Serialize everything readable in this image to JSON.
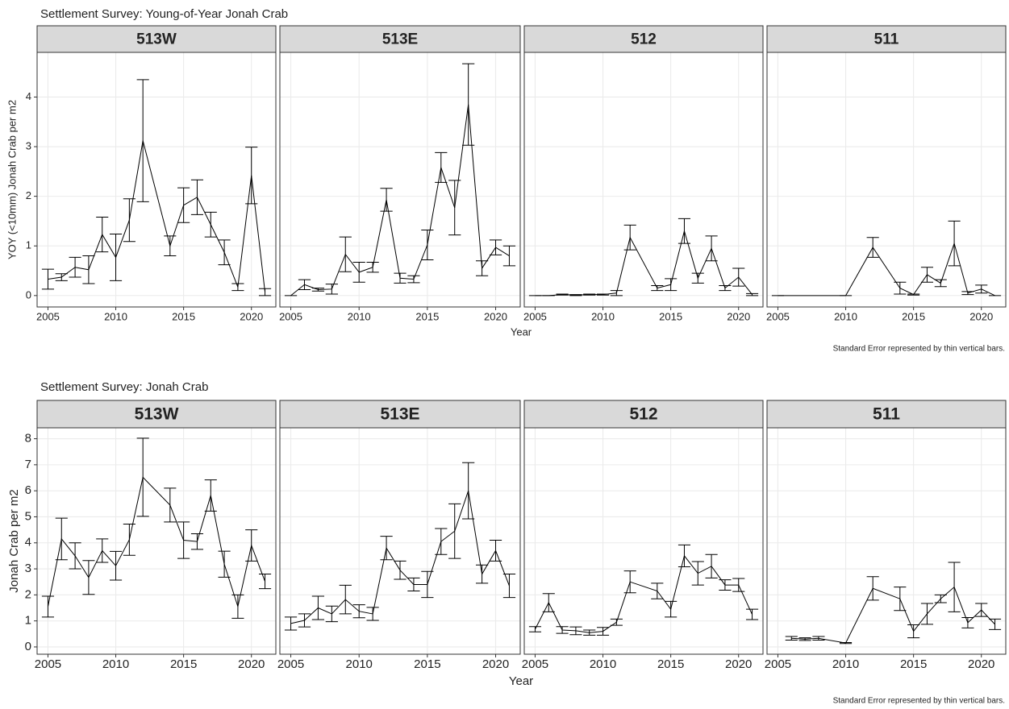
{
  "chart_data": [
    {
      "type": "line",
      "title": "Settlement Survey: Young-of-Year Jonah Crab",
      "ylabel": "YOY (<10mm) Jonah Crab per m2",
      "xlabel": "Year",
      "caption": "Standard Error represented by thin vertical bars.",
      "color": "#000000",
      "grid": true,
      "xlim": [
        2004.2,
        2021.8
      ],
      "xticks": [
        2005,
        2010,
        2015,
        2020
      ],
      "ylim": [
        -0.23,
        4.9
      ],
      "yticks": [
        0,
        1,
        2,
        3,
        4
      ],
      "panels": [
        {
          "name": "513W",
          "x": [
            2005,
            2006,
            2007,
            2008,
            2009,
            2010,
            2011,
            2012,
            2014,
            2015,
            2016,
            2017,
            2018,
            2019,
            2020,
            2021
          ],
          "values": [
            0.33,
            0.37,
            0.57,
            0.52,
            1.23,
            0.77,
            1.52,
            3.12,
            1.0,
            1.82,
            1.98,
            1.43,
            0.87,
            0.17,
            2.42,
            0.07
          ],
          "errors": [
            0.2,
            0.07,
            0.2,
            0.28,
            0.35,
            0.47,
            0.43,
            1.23,
            0.2,
            0.35,
            0.35,
            0.25,
            0.25,
            0.07,
            0.57,
            0.07
          ]
        },
        {
          "name": "513E",
          "x": [
            2005,
            2006,
            2007,
            2008,
            2009,
            2010,
            2011,
            2012,
            2013,
            2014,
            2015,
            2016,
            2017,
            2018,
            2019,
            2020,
            2021
          ],
          "values": [
            0,
            0.22,
            0.12,
            0.13,
            0.83,
            0.47,
            0.57,
            1.93,
            0.35,
            0.33,
            1.02,
            2.58,
            1.77,
            3.85,
            0.55,
            0.97,
            0.8
          ],
          "errors": [
            0,
            0.1,
            0.03,
            0.1,
            0.35,
            0.2,
            0.1,
            0.23,
            0.1,
            0.07,
            0.3,
            0.3,
            0.55,
            0.82,
            0.15,
            0.15,
            0.2
          ]
        },
        {
          "name": "512",
          "x": [
            2005,
            2006,
            2007,
            2008,
            2009,
            2010,
            2011,
            2012,
            2014,
            2015,
            2016,
            2017,
            2018,
            2019,
            2020,
            2021
          ],
          "values": [
            0,
            0,
            0.02,
            0.01,
            0.02,
            0.02,
            0.05,
            1.17,
            0.15,
            0.22,
            1.3,
            0.35,
            0.95,
            0.15,
            0.37,
            0.02
          ],
          "errors": [
            0,
            0,
            0.01,
            0.01,
            0.01,
            0.01,
            0.05,
            0.25,
            0.05,
            0.12,
            0.25,
            0.1,
            0.25,
            0.05,
            0.18,
            0.02
          ]
        },
        {
          "name": "511",
          "x": [
            2005,
            2010,
            2012,
            2014,
            2015,
            2016,
            2017,
            2018,
            2019,
            2020,
            2021
          ],
          "values": [
            0,
            0,
            0.97,
            0.15,
            0.02,
            0.42,
            0.25,
            1.05,
            0.05,
            0.13,
            0
          ],
          "errors": [
            0,
            0,
            0.2,
            0.12,
            0.01,
            0.15,
            0.07,
            0.45,
            0.03,
            0.08,
            0
          ]
        }
      ]
    },
    {
      "type": "line",
      "title": "Settlement Survey: Jonah Crab",
      "ylabel": "Jonah Crab per m2",
      "xlabel": "Year",
      "caption": "Standard Error represented by thin vertical bars.",
      "color": "#000000",
      "grid": true,
      "xlim": [
        2004.2,
        2021.8
      ],
      "xticks": [
        2005,
        2010,
        2015,
        2020
      ],
      "ylim": [
        -0.28,
        8.42
      ],
      "yticks": [
        0,
        1,
        2,
        3,
        4,
        5,
        6,
        7,
        8
      ],
      "panels": [
        {
          "name": "513W",
          "x": [
            2005,
            2006,
            2007,
            2008,
            2009,
            2010,
            2011,
            2012,
            2014,
            2015,
            2016,
            2017,
            2018,
            2019,
            2020,
            2021
          ],
          "values": [
            1.55,
            4.15,
            3.5,
            2.67,
            3.7,
            3.12,
            4.12,
            6.52,
            5.45,
            4.1,
            4.05,
            5.82,
            3.18,
            1.55,
            3.9,
            2.52
          ],
          "errors": [
            0.4,
            0.8,
            0.5,
            0.65,
            0.45,
            0.55,
            0.6,
            1.5,
            0.65,
            0.7,
            0.3,
            0.6,
            0.5,
            0.45,
            0.6,
            0.28
          ]
        },
        {
          "name": "513E",
          "x": [
            2005,
            2006,
            2007,
            2008,
            2009,
            2010,
            2011,
            2012,
            2013,
            2014,
            2015,
            2016,
            2017,
            2018,
            2019,
            2020,
            2021
          ],
          "values": [
            0.9,
            1.02,
            1.5,
            1.27,
            1.82,
            1.37,
            1.27,
            3.8,
            2.95,
            2.4,
            2.4,
            4.05,
            4.45,
            6.0,
            2.8,
            3.7,
            2.35
          ],
          "errors": [
            0.25,
            0.25,
            0.45,
            0.3,
            0.55,
            0.25,
            0.25,
            0.45,
            0.35,
            0.25,
            0.5,
            0.5,
            1.05,
            1.08,
            0.35,
            0.4,
            0.45
          ]
        },
        {
          "name": "512",
          "x": [
            2005,
            2006,
            2007,
            2008,
            2009,
            2010,
            2011,
            2012,
            2014,
            2015,
            2016,
            2017,
            2018,
            2019,
            2020,
            2021
          ],
          "values": [
            0.68,
            1.7,
            0.65,
            0.62,
            0.55,
            0.6,
            0.95,
            2.5,
            2.15,
            1.45,
            3.5,
            2.83,
            3.1,
            2.38,
            2.38,
            1.25
          ],
          "errors": [
            0.1,
            0.35,
            0.13,
            0.15,
            0.1,
            0.15,
            0.12,
            0.42,
            0.3,
            0.3,
            0.42,
            0.45,
            0.45,
            0.2,
            0.25,
            0.2
          ]
        },
        {
          "name": "511",
          "x": [
            2006,
            2007,
            2008,
            2010,
            2012,
            2014,
            2015,
            2016,
            2017,
            2018,
            2019,
            2020,
            2021
          ],
          "values": [
            0.33,
            0.3,
            0.33,
            0.15,
            2.25,
            1.85,
            0.6,
            1.27,
            1.85,
            2.3,
            0.93,
            1.42,
            0.87
          ],
          "errors": [
            0.07,
            0.05,
            0.07,
            0.02,
            0.45,
            0.45,
            0.25,
            0.4,
            0.15,
            0.95,
            0.2,
            0.25,
            0.2
          ]
        }
      ]
    }
  ]
}
